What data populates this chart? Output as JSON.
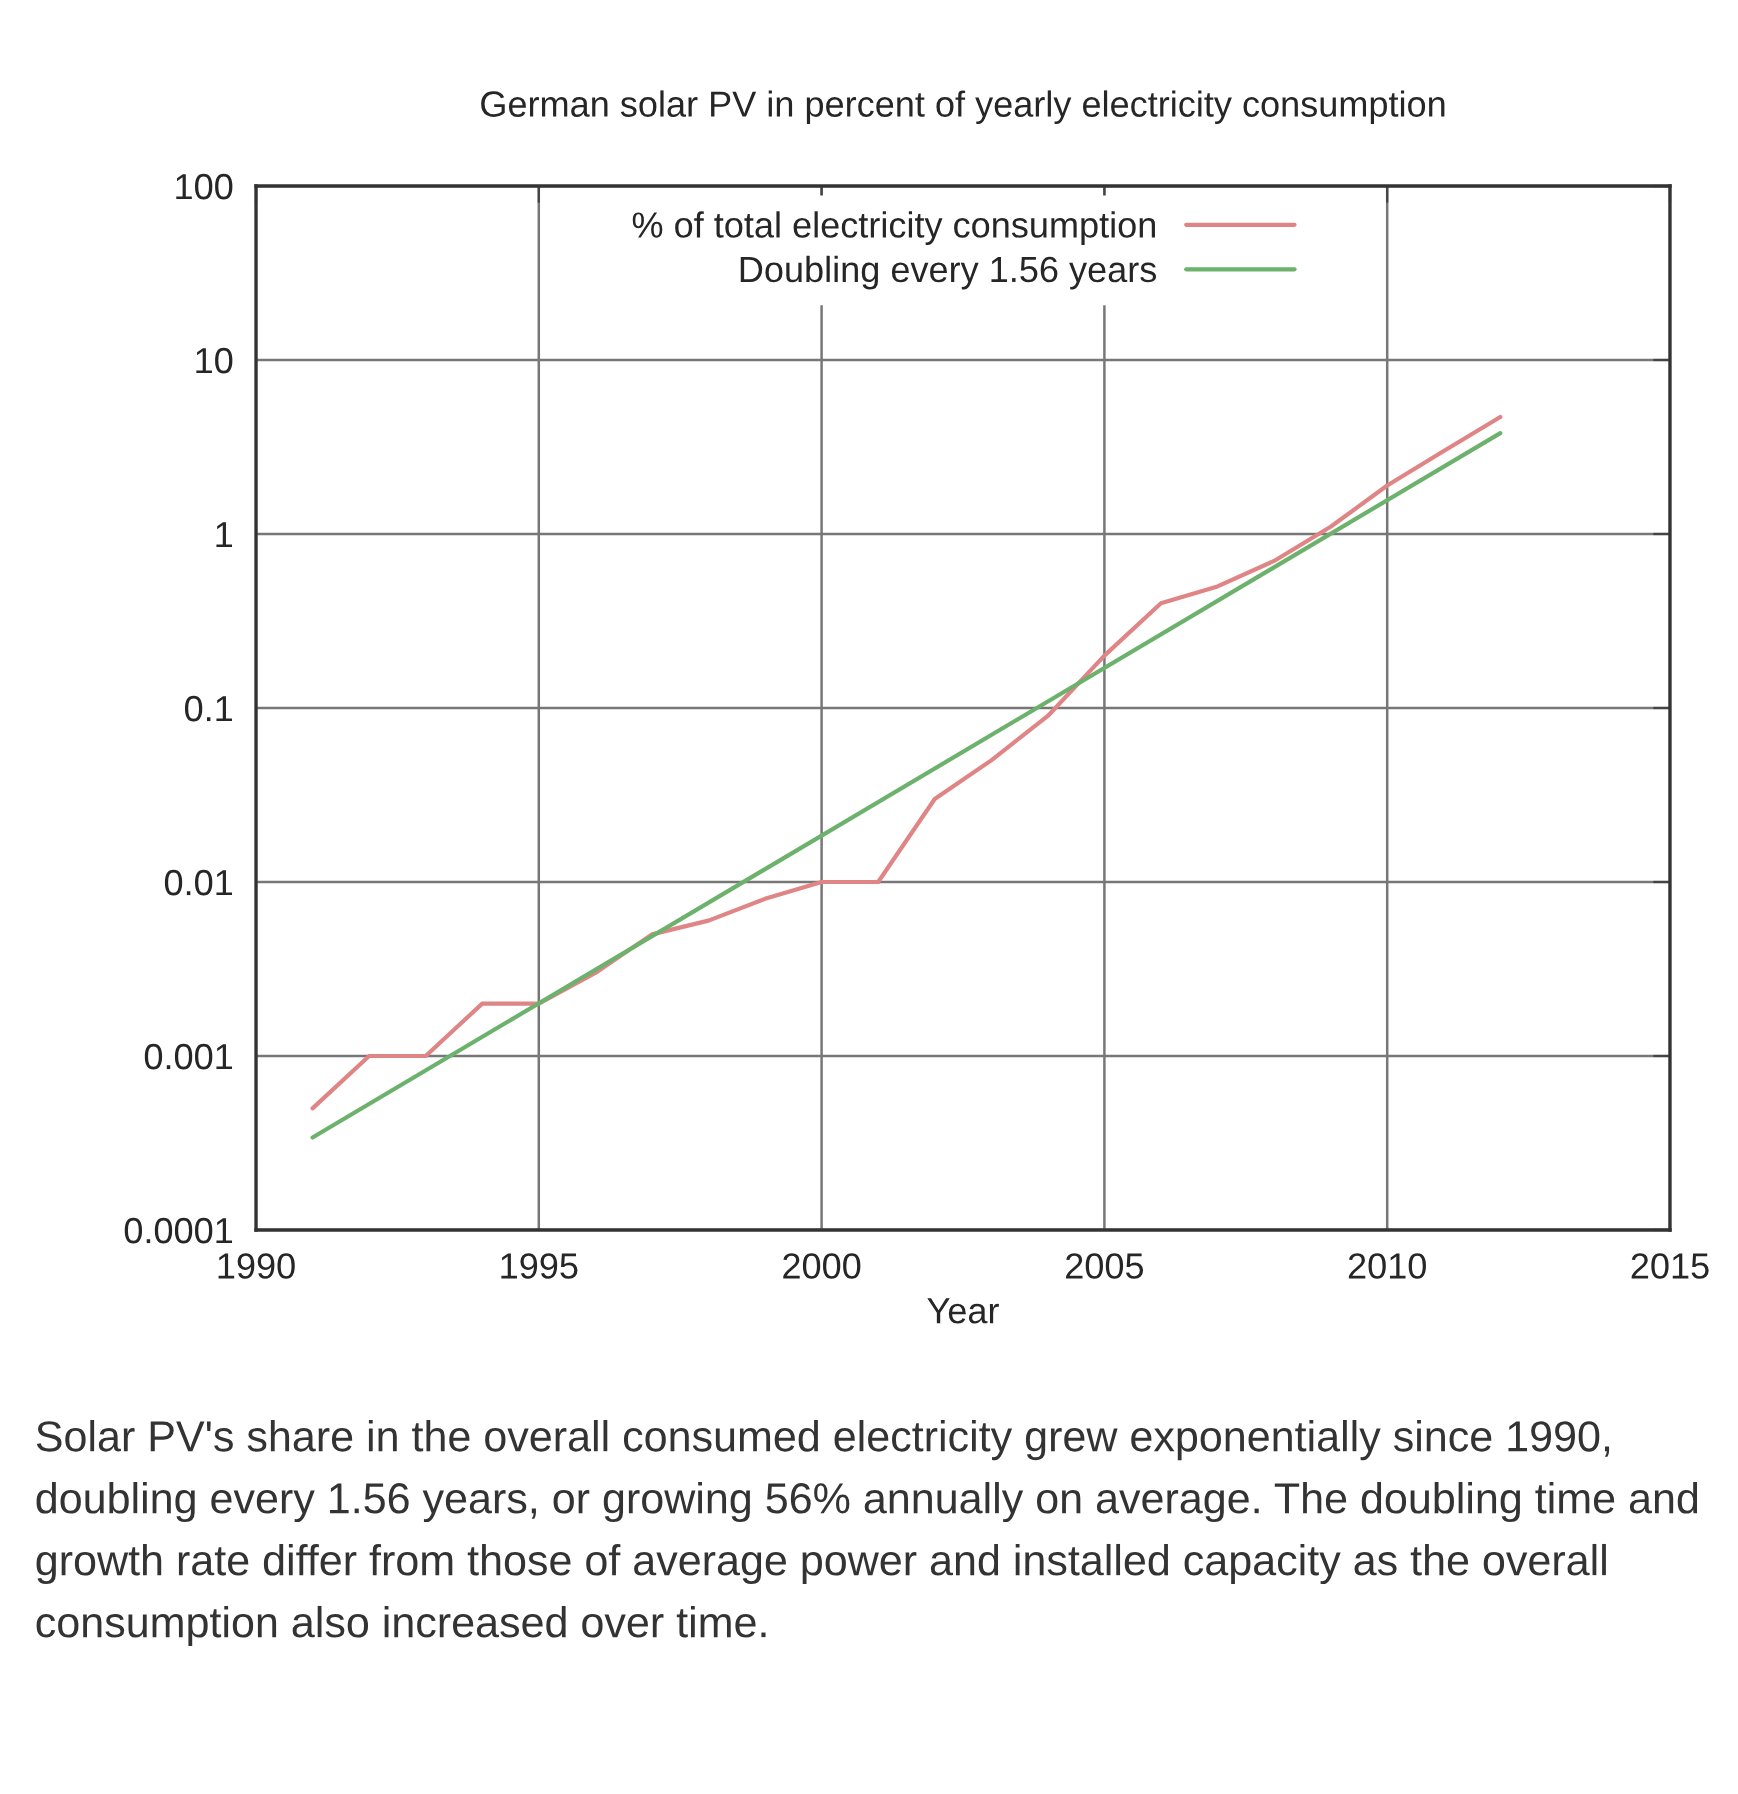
{
  "chart_data": {
    "type": "line",
    "title": "German solar PV in percent of yearly electricity consumption",
    "xlabel": "Year",
    "x": [
      1991,
      1992,
      1993,
      1994,
      1995,
      1996,
      1997,
      1998,
      1999,
      2000,
      2001,
      2002,
      2003,
      2004,
      2005,
      2006,
      2007,
      2008,
      2009,
      2010,
      2011,
      2012
    ],
    "series": [
      {
        "name": "% of total electricity consumption",
        "color": "#e08585",
        "values": [
          0.0005,
          0.001,
          0.001,
          0.002,
          0.002,
          0.003,
          0.005,
          0.006,
          0.008,
          0.01,
          0.01,
          0.03,
          0.05,
          0.09,
          0.2,
          0.4,
          0.5,
          0.7,
          1.1,
          1.9,
          3.0,
          4.7
        ]
      },
      {
        "name": "Doubling every 1.56 years",
        "color": "#6cb26c",
        "x": [
          1991,
          2012
        ],
        "values": [
          0.00034,
          3.8
        ]
      }
    ],
    "log": "y",
    "xlim": [
      1990,
      2015
    ],
    "xticks": [
      1990,
      1995,
      2000,
      2005,
      2010,
      2015
    ],
    "ylim": [
      0.0001,
      100
    ],
    "yticks": [
      0.0001,
      0.001,
      0.01,
      0.1,
      1,
      10,
      100
    ],
    "grid": true,
    "legend": "top",
    "line_style": "solid",
    "annotations": [
      "Solar PV's share in the overall consumed electricity grew exponentially since 1990, doubling every 1.56 years, or growing 56% annually on average. The doubling time and growth rate differ from those of average power and installed capacity as the overall consumption also increased over time."
    ]
  }
}
